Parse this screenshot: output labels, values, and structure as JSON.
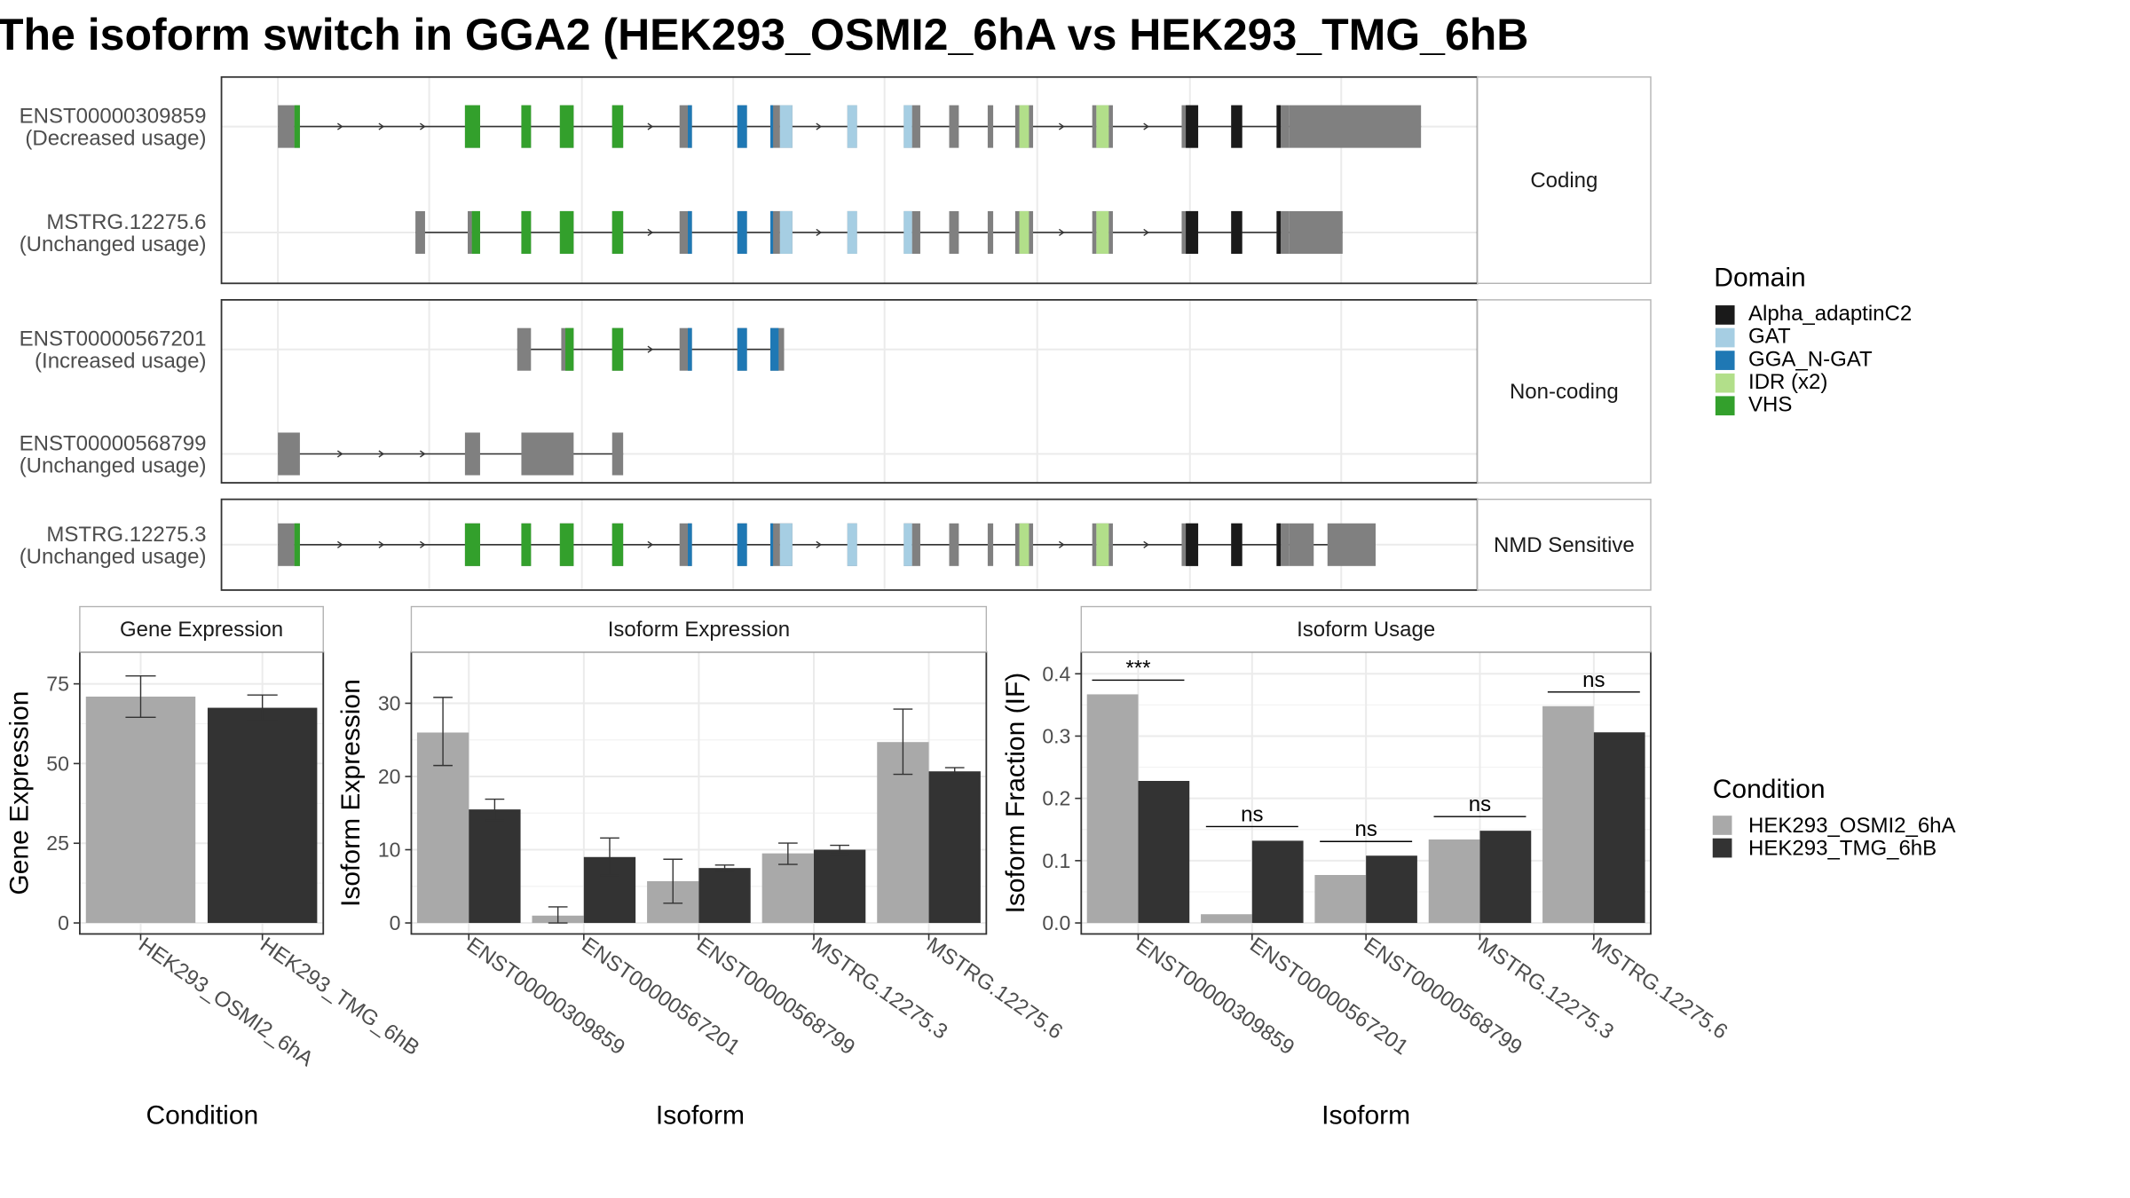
{
  "title": "The isoform switch in GGA2 (HEK293_OSMI2_6hA vs HEK293_TMG_6hB",
  "colors": {
    "exon": "#808080",
    "Alpha_adaptinC2": "#1a1a1a",
    "GAT": "#a6cee3",
    "GGA_N-GAT": "#1f78b4",
    "IDR (x2)": "#b2df8a",
    "VHS": "#33a02c",
    "cond1": "#a9a9a9",
    "cond2": "#333333",
    "grid": "#ebebeb",
    "panel_border": "#333333"
  },
  "structure": {
    "groups": [
      {
        "label": "Coding",
        "tracks": [
          {
            "id": "ENST00000309859",
            "usage": "(Decreased usage)",
            "exons": [
              [
                202,
                214
              ],
              [
                214,
                218
              ],
              [
                338,
                349
              ],
              [
                379,
                386
              ],
              [
                407,
                417
              ],
              [
                445,
                453
              ],
              [
                494,
                503
              ],
              [
                536,
                543
              ],
              [
                560,
                567
              ],
              [
                567,
                576
              ],
              [
                616,
                623
              ],
              [
                657,
                663
              ],
              [
                663,
                669
              ],
              [
                690,
                697
              ],
              [
                718,
                722
              ],
              [
                738,
                741
              ],
              [
                741,
                748
              ],
              [
                748,
                751
              ],
              [
                794,
                797
              ],
              [
                797,
                806
              ],
              [
                806,
                809
              ],
              [
                859,
                862
              ],
              [
                862,
                871
              ],
              [
                895,
                903
              ],
              [
                928,
                931
              ],
              [
                931,
                937
              ],
              [
                937,
                1033
              ]
            ],
            "domains": [
              [
                214,
                218,
                "VHS"
              ],
              [
                338,
                349,
                "VHS"
              ],
              [
                379,
                386,
                "VHS"
              ],
              [
                407,
                417,
                "VHS"
              ],
              [
                445,
                453,
                "VHS"
              ],
              [
                500,
                503,
                "GGA_N-GAT"
              ],
              [
                536,
                543,
                "GGA_N-GAT"
              ],
              [
                560,
                562,
                "GGA_N-GAT"
              ],
              [
                567,
                576,
                "GAT"
              ],
              [
                616,
                623,
                "GAT"
              ],
              [
                657,
                663,
                "GAT"
              ],
              [
                741,
                748,
                "IDR (x2)"
              ],
              [
                797,
                806,
                "IDR (x2)"
              ],
              [
                862,
                871,
                "Alpha_adaptinC2"
              ],
              [
                895,
                903,
                "Alpha_adaptinC2"
              ],
              [
                928,
                931,
                "Alpha_adaptinC2"
              ]
            ]
          },
          {
            "id": "MSTRG.12275.6",
            "usage": "(Unchanged usage)",
            "exons": [
              [
                302,
                309
              ],
              [
                340,
                343
              ],
              [
                343,
                349
              ],
              [
                379,
                386
              ],
              [
                407,
                417
              ],
              [
                445,
                453
              ],
              [
                494,
                503
              ],
              [
                536,
                543
              ],
              [
                560,
                567
              ],
              [
                567,
                576
              ],
              [
                616,
                623
              ],
              [
                657,
                663
              ],
              [
                663,
                669
              ],
              [
                690,
                697
              ],
              [
                718,
                722
              ],
              [
                738,
                741
              ],
              [
                741,
                748
              ],
              [
                748,
                751
              ],
              [
                794,
                797
              ],
              [
                797,
                806
              ],
              [
                806,
                809
              ],
              [
                859,
                862
              ],
              [
                862,
                871
              ],
              [
                895,
                903
              ],
              [
                928,
                931
              ],
              [
                931,
                937
              ],
              [
                937,
                976
              ]
            ],
            "domains": [
              [
                343,
                349,
                "VHS"
              ],
              [
                379,
                386,
                "VHS"
              ],
              [
                407,
                417,
                "VHS"
              ],
              [
                445,
                453,
                "VHS"
              ],
              [
                500,
                503,
                "GGA_N-GAT"
              ],
              [
                536,
                543,
                "GGA_N-GAT"
              ],
              [
                560,
                562,
                "GGA_N-GAT"
              ],
              [
                567,
                576,
                "GAT"
              ],
              [
                616,
                623,
                "GAT"
              ],
              [
                657,
                663,
                "GAT"
              ],
              [
                741,
                748,
                "IDR (x2)"
              ],
              [
                797,
                806,
                "IDR (x2)"
              ],
              [
                862,
                871,
                "Alpha_adaptinC2"
              ],
              [
                895,
                903,
                "Alpha_adaptinC2"
              ],
              [
                928,
                931,
                "Alpha_adaptinC2"
              ]
            ]
          }
        ]
      },
      {
        "label": "Non-coding",
        "tracks": [
          {
            "id": "ENST00000567201",
            "usage": "(Increased usage)",
            "exons": [
              [
                376,
                386
              ],
              [
                408,
                411
              ],
              [
                411,
                417
              ],
              [
                445,
                453
              ],
              [
                494,
                503
              ],
              [
                536,
                543
              ],
              [
                560,
                570
              ]
            ],
            "domains": [
              [
                411,
                417,
                "VHS"
              ],
              [
                445,
                453,
                "VHS"
              ],
              [
                500,
                503,
                "GGA_N-GAT"
              ],
              [
                536,
                543,
                "GGA_N-GAT"
              ],
              [
                560,
                566,
                "GGA_N-GAT"
              ]
            ]
          },
          {
            "id": "ENST00000568799",
            "usage": "(Unchanged usage)",
            "exons": [
              [
                202,
                218
              ],
              [
                338,
                349
              ],
              [
                379,
                417
              ],
              [
                445,
                453
              ]
            ],
            "domains": []
          }
        ]
      },
      {
        "label": "NMD Sensitive",
        "tracks": [
          {
            "id": "MSTRG.12275.3",
            "usage": "(Unchanged usage)",
            "exons": [
              [
                202,
                214
              ],
              [
                214,
                218
              ],
              [
                338,
                349
              ],
              [
                379,
                386
              ],
              [
                407,
                417
              ],
              [
                445,
                453
              ],
              [
                494,
                503
              ],
              [
                536,
                543
              ],
              [
                560,
                567
              ],
              [
                567,
                576
              ],
              [
                616,
                623
              ],
              [
                657,
                663
              ],
              [
                663,
                669
              ],
              [
                690,
                697
              ],
              [
                718,
                722
              ],
              [
                738,
                741
              ],
              [
                741,
                748
              ],
              [
                748,
                751
              ],
              [
                794,
                797
              ],
              [
                797,
                806
              ],
              [
                806,
                809
              ],
              [
                859,
                862
              ],
              [
                862,
                871
              ],
              [
                895,
                903
              ],
              [
                928,
                931
              ],
              [
                931,
                937
              ],
              [
                937,
                955
              ],
              [
                965,
                1000
              ]
            ],
            "domains": [
              [
                214,
                218,
                "VHS"
              ],
              [
                338,
                349,
                "VHS"
              ],
              [
                379,
                386,
                "VHS"
              ],
              [
                407,
                417,
                "VHS"
              ],
              [
                445,
                453,
                "VHS"
              ],
              [
                500,
                503,
                "GGA_N-GAT"
              ],
              [
                536,
                543,
                "GGA_N-GAT"
              ],
              [
                560,
                562,
                "GGA_N-GAT"
              ],
              [
                567,
                576,
                "GAT"
              ],
              [
                616,
                623,
                "GAT"
              ],
              [
                657,
                663,
                "GAT"
              ],
              [
                741,
                748,
                "IDR (x2)"
              ],
              [
                797,
                806,
                "IDR (x2)"
              ],
              [
                862,
                871,
                "Alpha_adaptinC2"
              ],
              [
                895,
                903,
                "Alpha_adaptinC2"
              ],
              [
                928,
                931,
                "Alpha_adaptinC2"
              ]
            ]
          }
        ]
      }
    ]
  },
  "legend_domain": {
    "title": "Domain",
    "items": [
      "Alpha_adaptinC2",
      "GAT",
      "GGA_N-GAT",
      "IDR (x2)",
      "VHS"
    ]
  },
  "legend_condition": {
    "title": "Condition",
    "items": [
      "HEK293_OSMI2_6hA",
      "HEK293_TMG_6hB"
    ]
  },
  "chart_data": [
    {
      "type": "bar",
      "title": "Gene Expression",
      "xlabel": "Condition",
      "ylabel": "Gene Expression",
      "ylim": [
        0,
        85
      ],
      "yticks": [
        0,
        25,
        50,
        75
      ],
      "categories": [
        "HEK293_OSMI2_6hA",
        "HEK293_TMG_6hB"
      ],
      "values": [
        71,
        67.5
      ],
      "errors": [
        [
          64.5,
          77.5
        ],
        [
          63.5,
          71.5
        ]
      ]
    },
    {
      "type": "bar",
      "title": "Isoform Expression",
      "xlabel": "Isoform",
      "ylabel": "Isoform Expression",
      "ylim": [
        0,
        37
      ],
      "yticks": [
        0,
        10,
        20,
        30
      ],
      "categories": [
        "ENST00000309859",
        "ENST00000567201",
        "ENST00000568799",
        "MSTRG.12275.3",
        "MSTRG.12275.6"
      ],
      "series": [
        {
          "name": "HEK293_OSMI2_6hA",
          "values": [
            26,
            1,
            5.7,
            9.5,
            24.7
          ],
          "errors": [
            [
              21.5,
              30.8
            ],
            [
              0,
              2.2
            ],
            [
              2.7,
              8.7
            ],
            [
              8,
              10.9
            ],
            [
              20.3,
              29.2
            ]
          ]
        },
        {
          "name": "HEK293_TMG_6hB",
          "values": [
            15.5,
            9,
            7.5,
            10,
            20.7
          ],
          "errors": [
            [
              14,
              16.9
            ],
            [
              6.5,
              11.6
            ],
            [
              7.1,
              7.9
            ],
            [
              9.4,
              10.6
            ],
            [
              20.2,
              21.2
            ]
          ]
        }
      ]
    },
    {
      "type": "bar",
      "title": "Isoform Usage",
      "xlabel": "Isoform",
      "ylabel": "Isoform Fraction (IF)",
      "ylim": [
        0,
        0.435
      ],
      "yticks": [
        0.0,
        0.1,
        0.2,
        0.3,
        0.4
      ],
      "ytick_labels": [
        "0.0",
        "0.1",
        "0.2",
        "0.3",
        "0.4"
      ],
      "categories": [
        "ENST00000309859",
        "ENST00000567201",
        "ENST00000568799",
        "MSTRG.12275.3",
        "MSTRG.12275.6"
      ],
      "series": [
        {
          "name": "HEK293_OSMI2_6hA",
          "values": [
            0.367,
            0.014,
            0.077,
            0.134,
            0.348
          ]
        },
        {
          "name": "HEK293_TMG_6hB",
          "values": [
            0.228,
            0.132,
            0.108,
            0.148,
            0.306
          ]
        }
      ],
      "significance": [
        "***",
        "ns",
        "ns",
        "ns",
        "ns"
      ]
    }
  ]
}
